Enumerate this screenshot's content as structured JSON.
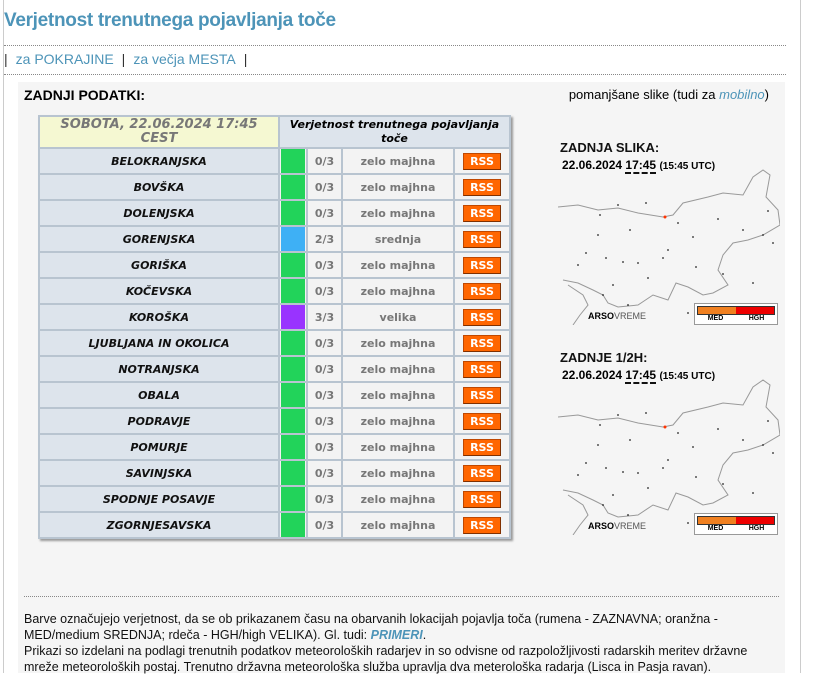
{
  "title": "Verjetnost trenutnega pojavljanja toče",
  "nav": [
    {
      "label": "za POKRAJINE"
    },
    {
      "label": "za večja MESTA"
    }
  ],
  "panel": {
    "heading": "ZADNJI PODATKI:",
    "reduced_prefix": "pomanjšane slike (tudi za ",
    "reduced_link": "mobilno",
    "reduced_suffix": ")"
  },
  "table": {
    "date_header": "SOBOTA, 22.06.2024 17:45 CEST",
    "prob_header": "Verjetnost trenutnega pojavljanja toče",
    "rss_label": "RSS",
    "rows": [
      {
        "name": "BELOKRANJSKA",
        "color": "#22d35a",
        "score": "0/3",
        "level": "zelo majhna"
      },
      {
        "name": "BOVŠKA",
        "color": "#22d35a",
        "score": "0/3",
        "level": "zelo majhna"
      },
      {
        "name": "DOLENJSKA",
        "color": "#22d35a",
        "score": "0/3",
        "level": "zelo majhna"
      },
      {
        "name": "GORENJSKA",
        "color": "#3eb0f5",
        "score": "2/3",
        "level": "srednja"
      },
      {
        "name": "GORIŠKA",
        "color": "#22d35a",
        "score": "0/3",
        "level": "zelo majhna"
      },
      {
        "name": "KOČEVSKA",
        "color": "#22d35a",
        "score": "0/3",
        "level": "zelo majhna"
      },
      {
        "name": "KOROŠKA",
        "color": "#9933ff",
        "score": "3/3",
        "level": "velika"
      },
      {
        "name": "LJUBLJANA IN OKOLICA",
        "color": "#22d35a",
        "score": "0/3",
        "level": "zelo majhna"
      },
      {
        "name": "NOTRANJSKA",
        "color": "#22d35a",
        "score": "0/3",
        "level": "zelo majhna"
      },
      {
        "name": "OBALA",
        "color": "#22d35a",
        "score": "0/3",
        "level": "zelo majhna"
      },
      {
        "name": "PODRAVJE",
        "color": "#22d35a",
        "score": "0/3",
        "level": "zelo majhna"
      },
      {
        "name": "POMURJE",
        "color": "#22d35a",
        "score": "0/3",
        "level": "zelo majhna"
      },
      {
        "name": "SAVINJSKA",
        "color": "#22d35a",
        "score": "0/3",
        "level": "zelo majhna"
      },
      {
        "name": "SPODNJE POSAVJE",
        "color": "#22d35a",
        "score": "0/3",
        "level": "zelo majhna"
      },
      {
        "name": "ZGORNJESAVSKA",
        "color": "#22d35a",
        "score": "0/3",
        "level": "zelo majhna"
      }
    ]
  },
  "images": [
    {
      "title": "ZADNJA SLIKA:",
      "date": "22.06.2024",
      "time": "17:45",
      "utc": "(15:45 UTC)"
    },
    {
      "title": "ZADNJE 1/2H:",
      "date": "22.06.2024",
      "time": "17:45",
      "utc": "(15:45 UTC)"
    }
  ],
  "map_logo": {
    "a": "ARSO",
    "b": "VREME"
  },
  "map_legend": {
    "med": "MED",
    "hgh": "HGH",
    "med_color": "#f08020",
    "hgh_color": "#ee0000"
  },
  "footer": {
    "p1": "Barve označujejo verjetnost, da se ob prikazanem času na obarvanih lokacijah pojavlja toča (rumena - ZAZNAVNA; oranžna - MED/medium SREDNJA; rdeča - HGH/high VELIKA). Gl. tudi: ",
    "p1_link": "PRIMERI",
    "p1_end": ".",
    "p2": "Prikazi so izdelani na podlagi trenutnih podatkov meteoroloških radarjev in so odvisne od razpoložljivosti radarskih meritev državne mreže meteoroloških postaj. Trenutno državna meteorološka služba upravlja dva meterološka radarja (Lisca in Pasja ravan)."
  }
}
